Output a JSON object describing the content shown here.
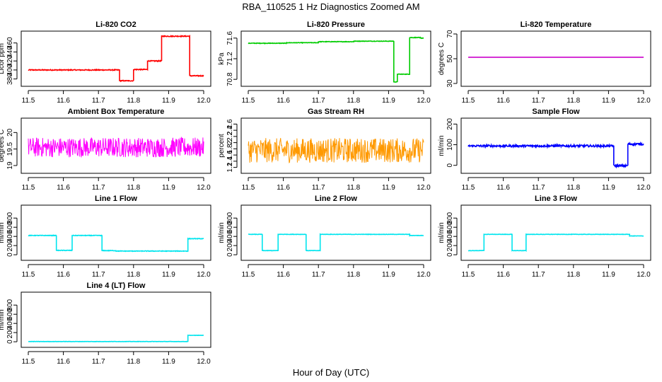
{
  "figure": {
    "title": "RBA_110525  1 Hz Diagnostics Zoomed AM",
    "xlabel": "Hour of Day (UTC)"
  },
  "chart_data": [
    {
      "type": "line",
      "title": "Li-820 CO2",
      "ylabel": "Licor ppm",
      "color": "#ff0000",
      "xlim": [
        11.5,
        12.0
      ],
      "ylim": [
        370,
        480
      ],
      "yticks": [
        380,
        400,
        420,
        440,
        460
      ],
      "xticks": [
        11.5,
        11.6,
        11.7,
        11.8,
        11.9,
        12.0
      ],
      "segments": [
        [
          11.5,
          11.76,
          400
        ],
        [
          11.76,
          11.8,
          376
        ],
        [
          11.8,
          11.84,
          401
        ],
        [
          11.84,
          11.88,
          420
        ],
        [
          11.88,
          11.96,
          475
        ],
        [
          11.96,
          12.0,
          387
        ]
      ],
      "noise": 1.0
    },
    {
      "type": "line",
      "title": "Li-820 Pressure",
      "ylabel": "kPa",
      "color": "#00cc00",
      "xlim": [
        11.5,
        12.0
      ],
      "ylim": [
        70.72,
        71.68
      ],
      "yticks": [
        70.8,
        71.2,
        71.6
      ],
      "xticks": [
        11.5,
        11.6,
        11.7,
        11.8,
        11.9,
        12.0
      ],
      "segments": [
        [
          11.5,
          11.61,
          71.5
        ],
        [
          11.61,
          11.7,
          71.51
        ],
        [
          11.7,
          11.8,
          71.53
        ],
        [
          11.8,
          11.915,
          71.54
        ],
        [
          11.915,
          11.925,
          70.75
        ],
        [
          11.925,
          11.96,
          70.9
        ],
        [
          11.96,
          11.99,
          71.61
        ],
        [
          11.99,
          12.0,
          71.6
        ]
      ],
      "noise": 0.005
    },
    {
      "type": "line",
      "title": "Li-820 Temperature",
      "ylabel": "degrees C",
      "color": "#cc00cc",
      "xlim": [
        11.5,
        12.0
      ],
      "ylim": [
        30,
        70
      ],
      "yticks": [
        30,
        50,
        70
      ],
      "xticks": [
        11.5,
        11.6,
        11.7,
        11.8,
        11.9,
        12.0
      ],
      "segments": [
        [
          11.5,
          12.0,
          51.2
        ]
      ],
      "noise": 0
    },
    {
      "type": "line",
      "title": "Ambient Box Temperature",
      "ylabel": "degrees C",
      "color": "#ff00ff",
      "xlim": [
        11.5,
        12.0
      ],
      "ylim": [
        18.85,
        20.35
      ],
      "yticks": [
        19.0,
        19.5,
        20.0
      ],
      "xticks": [
        11.5,
        11.6,
        11.7,
        11.8,
        11.9,
        12.0
      ],
      "segments": [
        [
          11.5,
          12.0,
          19.55
        ]
      ],
      "noise": 0.3
    },
    {
      "type": "line",
      "title": "Gas Stream RH",
      "ylabel": "percent",
      "color": "#ff9900",
      "xlim": [
        11.5,
        12.0
      ],
      "ylim": [
        1.1,
        2.7
      ],
      "yticks": [
        1.2,
        1.4,
        1.6,
        1.8,
        2.0,
        2.2,
        2.4,
        2.6
      ],
      "xticks": [
        11.5,
        11.6,
        11.7,
        11.8,
        11.9,
        12.0
      ],
      "segments": [
        [
          11.5,
          12.0,
          1.75
        ]
      ],
      "noise": 0.4
    },
    {
      "type": "line",
      "title": "Sample Flow",
      "ylabel": "ml/min",
      "color": "#0000ff",
      "xlim": [
        11.5,
        12.0
      ],
      "ylim": [
        -25,
        215
      ],
      "yticks": [
        0,
        100,
        200
      ],
      "xticks": [
        11.5,
        11.6,
        11.7,
        11.8,
        11.9,
        12.0
      ],
      "segments": [
        [
          11.5,
          11.915,
          94
        ],
        [
          11.915,
          11.955,
          -2
        ],
        [
          11.955,
          12.0,
          103
        ]
      ],
      "noise": 5
    },
    {
      "type": "line",
      "title": "Line 1 Flow",
      "ylabel": "ml/min",
      "color": "#00e5ee",
      "xlim": [
        11.5,
        12.0
      ],
      "ylim": [
        -60,
        1020
      ],
      "yticks": [
        0,
        200,
        400,
        600,
        800
      ],
      "xticks": [
        11.5,
        11.6,
        11.7,
        11.8,
        11.9,
        12.0
      ],
      "segments": [
        [
          11.5,
          11.58,
          420
        ],
        [
          11.58,
          11.625,
          95
        ],
        [
          11.625,
          11.71,
          420
        ],
        [
          11.71,
          11.75,
          90
        ],
        [
          11.75,
          11.955,
          80
        ],
        [
          11.955,
          12.0,
          350
        ]
      ],
      "noise": 6
    },
    {
      "type": "line",
      "title": "Line 2 Flow",
      "ylabel": "ml/min",
      "color": "#00e5ee",
      "xlim": [
        11.5,
        12.0
      ],
      "ylim": [
        -60,
        1020
      ],
      "yticks": [
        0,
        200,
        400,
        600,
        800
      ],
      "xticks": [
        11.5,
        11.6,
        11.7,
        11.8,
        11.9,
        12.0
      ],
      "segments": [
        [
          11.5,
          11.54,
          445
        ],
        [
          11.54,
          11.585,
          90
        ],
        [
          11.585,
          11.665,
          445
        ],
        [
          11.665,
          11.705,
          90
        ],
        [
          11.705,
          11.96,
          445
        ],
        [
          11.96,
          12.0,
          420
        ]
      ],
      "noise": 4
    },
    {
      "type": "line",
      "title": "Line 3 Flow",
      "ylabel": "ml/min",
      "color": "#00e5ee",
      "xlim": [
        11.5,
        12.0
      ],
      "ylim": [
        -60,
        1020
      ],
      "yticks": [
        0,
        200,
        400,
        600,
        800
      ],
      "xticks": [
        11.5,
        11.6,
        11.7,
        11.8,
        11.9,
        12.0
      ],
      "segments": [
        [
          11.5,
          11.545,
          90
        ],
        [
          11.545,
          11.625,
          445
        ],
        [
          11.625,
          11.665,
          90
        ],
        [
          11.665,
          11.96,
          445
        ],
        [
          11.96,
          12.0,
          410
        ]
      ],
      "noise": 4
    },
    {
      "type": "line",
      "title": "Line 4 (LT) Flow",
      "ylabel": "ml/min",
      "color": "#00e5ee",
      "xlim": [
        11.5,
        12.0
      ],
      "ylim": [
        -60,
        1020
      ],
      "yticks": [
        0,
        200,
        400,
        600,
        800
      ],
      "xticks": [
        11.5,
        11.6,
        11.7,
        11.8,
        11.9,
        12.0
      ],
      "segments": [
        [
          11.5,
          11.955,
          5
        ],
        [
          11.955,
          12.0,
          140
        ]
      ],
      "noise": 3
    }
  ]
}
